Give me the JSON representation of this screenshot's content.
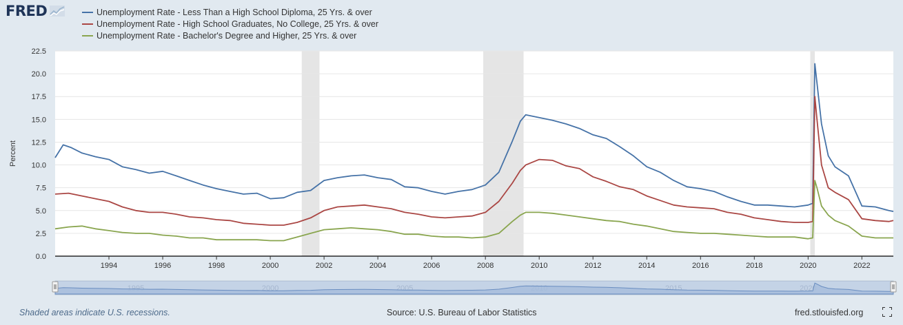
{
  "brand": {
    "name": "FRED"
  },
  "legend": [
    {
      "label": "Unemployment Rate - Less Than a High School Diploma, 25 Yrs. & over",
      "color": "#4572a7"
    },
    {
      "label": "Unemployment Rate - High School Graduates, No College, 25 Yrs. & over",
      "color": "#aa4643"
    },
    {
      "label": "Unemployment Rate - Bachelor's Degree and Higher, 25 Yrs. & over",
      "color": "#89a54e"
    }
  ],
  "footer": {
    "note": "Shaded areas indicate U.S. recessions.",
    "source": "Source: U.S. Bureau of Labor Statistics",
    "url": "fred.stlouisfed.org"
  },
  "chart_data": {
    "type": "line",
    "ylabel": "Percent",
    "xlabel": "",
    "xlim": [
      1992.0,
      2023.17
    ],
    "ylim": [
      0,
      22.5
    ],
    "yticks": [
      "0.0",
      "2.5",
      "5.0",
      "7.5",
      "10.0",
      "12.5",
      "15.0",
      "17.5",
      "20.0",
      "22.5"
    ],
    "xticks": [
      "1994",
      "1996",
      "1998",
      "2000",
      "2002",
      "2004",
      "2006",
      "2008",
      "2010",
      "2012",
      "2014",
      "2016",
      "2018",
      "2020",
      "2022"
    ],
    "grid": true,
    "recessions": [
      [
        2001.17,
        2001.83
      ],
      [
        2007.92,
        2009.42
      ],
      [
        2020.08,
        2020.25
      ]
    ],
    "navigator": {
      "labels": [
        "1995",
        "2000",
        "2005",
        "2010",
        "2015",
        "2020"
      ],
      "range": [
        1992.0,
        2023.17
      ]
    },
    "series": [
      {
        "name": "Unemployment Rate - Less Than a High School Diploma, 25 Yrs. & over",
        "color": "#4572a7",
        "x": [
          1992.0,
          1992.3,
          1992.6,
          1993.0,
          1993.5,
          1994.0,
          1994.5,
          1995.0,
          1995.5,
          1996.0,
          1996.5,
          1997.0,
          1997.5,
          1998.0,
          1998.5,
          1999.0,
          1999.5,
          2000.0,
          2000.5,
          2001.0,
          2001.5,
          2002.0,
          2002.5,
          2003.0,
          2003.5,
          2004.0,
          2004.5,
          2005.0,
          2005.5,
          2006.0,
          2006.5,
          2007.0,
          2007.5,
          2008.0,
          2008.5,
          2009.0,
          2009.3,
          2009.5,
          2010.0,
          2010.5,
          2011.0,
          2011.5,
          2012.0,
          2012.5,
          2013.0,
          2013.5,
          2014.0,
          2014.5,
          2015.0,
          2015.5,
          2016.0,
          2016.5,
          2017.0,
          2017.5,
          2018.0,
          2018.5,
          2019.0,
          2019.5,
          2020.0,
          2020.17,
          2020.25,
          2020.33,
          2020.5,
          2020.75,
          2021.0,
          2021.5,
          2022.0,
          2022.5,
          2023.0,
          2023.17
        ],
        "y": [
          10.8,
          12.2,
          11.9,
          11.3,
          10.9,
          10.6,
          9.8,
          9.5,
          9.1,
          9.3,
          8.8,
          8.3,
          7.8,
          7.4,
          7.1,
          6.8,
          6.9,
          6.3,
          6.4,
          7.0,
          7.2,
          8.3,
          8.6,
          8.8,
          8.9,
          8.6,
          8.4,
          7.6,
          7.5,
          7.1,
          6.8,
          7.1,
          7.3,
          7.8,
          9.2,
          12.6,
          14.8,
          15.5,
          15.2,
          14.9,
          14.5,
          14.0,
          13.3,
          12.9,
          12.0,
          11.0,
          9.8,
          9.2,
          8.3,
          7.6,
          7.4,
          7.1,
          6.5,
          6.0,
          5.6,
          5.6,
          5.5,
          5.4,
          5.6,
          5.8,
          21.1,
          19.0,
          14.5,
          11.0,
          9.8,
          8.8,
          5.5,
          5.4,
          5.0,
          4.9
        ]
      },
      {
        "name": "Unemployment Rate - High School Graduates, No College, 25 Yrs. & over",
        "color": "#aa4643",
        "x": [
          1992.0,
          1992.5,
          1993.0,
          1993.5,
          1994.0,
          1994.5,
          1995.0,
          1995.5,
          1996.0,
          1996.5,
          1997.0,
          1997.5,
          1998.0,
          1998.5,
          1999.0,
          1999.5,
          2000.0,
          2000.5,
          2001.0,
          2001.5,
          2002.0,
          2002.5,
          2003.0,
          2003.5,
          2004.0,
          2004.5,
          2005.0,
          2005.5,
          2006.0,
          2006.5,
          2007.0,
          2007.5,
          2008.0,
          2008.5,
          2009.0,
          2009.3,
          2009.5,
          2010.0,
          2010.5,
          2011.0,
          2011.5,
          2012.0,
          2012.5,
          2013.0,
          2013.5,
          2014.0,
          2014.5,
          2015.0,
          2015.5,
          2016.0,
          2016.5,
          2017.0,
          2017.5,
          2018.0,
          2018.5,
          2019.0,
          2019.5,
          2020.0,
          2020.17,
          2020.25,
          2020.33,
          2020.5,
          2020.75,
          2021.0,
          2021.5,
          2022.0,
          2022.5,
          2023.0,
          2023.17
        ],
        "y": [
          6.8,
          6.9,
          6.6,
          6.3,
          6.0,
          5.4,
          5.0,
          4.8,
          4.8,
          4.6,
          4.3,
          4.2,
          4.0,
          3.9,
          3.6,
          3.5,
          3.4,
          3.4,
          3.7,
          4.2,
          5.0,
          5.4,
          5.5,
          5.6,
          5.4,
          5.2,
          4.8,
          4.6,
          4.3,
          4.2,
          4.3,
          4.4,
          4.8,
          6.0,
          8.0,
          9.4,
          10.0,
          10.6,
          10.5,
          9.9,
          9.6,
          8.7,
          8.2,
          7.6,
          7.3,
          6.6,
          6.1,
          5.6,
          5.4,
          5.3,
          5.2,
          4.8,
          4.6,
          4.2,
          4.0,
          3.8,
          3.7,
          3.7,
          3.8,
          17.5,
          15.0,
          10.0,
          7.5,
          7.0,
          6.2,
          4.1,
          3.9,
          3.8,
          3.9
        ]
      },
      {
        "name": "Unemployment Rate - Bachelor's Degree and Higher, 25 Yrs. & over",
        "color": "#89a54e",
        "x": [
          1992.0,
          1992.5,
          1993.0,
          1993.5,
          1994.0,
          1994.5,
          1995.0,
          1995.5,
          1996.0,
          1996.5,
          1997.0,
          1997.5,
          1998.0,
          1998.5,
          1999.0,
          1999.5,
          2000.0,
          2000.5,
          2001.0,
          2001.5,
          2002.0,
          2002.5,
          2003.0,
          2003.5,
          2004.0,
          2004.5,
          2005.0,
          2005.5,
          2006.0,
          2006.5,
          2007.0,
          2007.5,
          2008.0,
          2008.5,
          2009.0,
          2009.3,
          2009.5,
          2010.0,
          2010.5,
          2011.0,
          2011.5,
          2012.0,
          2012.5,
          2013.0,
          2013.5,
          2014.0,
          2014.5,
          2015.0,
          2015.5,
          2016.0,
          2016.5,
          2017.0,
          2017.5,
          2018.0,
          2018.5,
          2019.0,
          2019.5,
          2020.0,
          2020.17,
          2020.25,
          2020.33,
          2020.5,
          2020.75,
          2021.0,
          2021.5,
          2022.0,
          2022.5,
          2023.0,
          2023.17
        ],
        "y": [
          3.0,
          3.2,
          3.3,
          3.0,
          2.8,
          2.6,
          2.5,
          2.5,
          2.3,
          2.2,
          2.0,
          2.0,
          1.8,
          1.8,
          1.8,
          1.8,
          1.7,
          1.7,
          2.1,
          2.5,
          2.9,
          3.0,
          3.1,
          3.0,
          2.9,
          2.7,
          2.4,
          2.4,
          2.2,
          2.1,
          2.1,
          2.0,
          2.1,
          2.5,
          3.8,
          4.5,
          4.8,
          4.8,
          4.7,
          4.5,
          4.3,
          4.1,
          3.9,
          3.8,
          3.5,
          3.3,
          3.0,
          2.7,
          2.6,
          2.5,
          2.5,
          2.4,
          2.3,
          2.2,
          2.1,
          2.1,
          2.1,
          1.9,
          2.0,
          8.3,
          7.5,
          5.5,
          4.5,
          3.9,
          3.3,
          2.2,
          2.0,
          2.0,
          2.0
        ]
      }
    ]
  }
}
